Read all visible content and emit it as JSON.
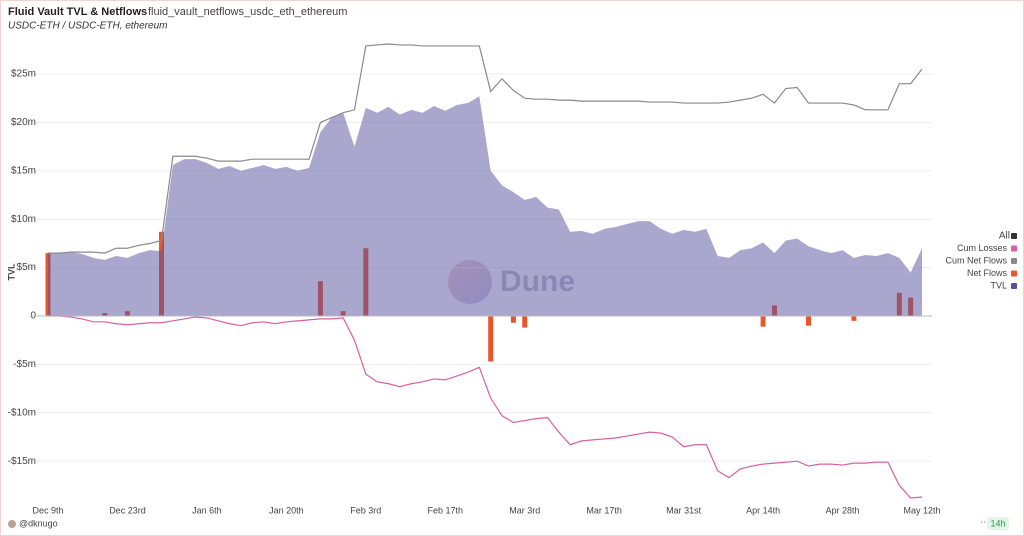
{
  "header": {
    "title": "Fluid Vault TVL & Netflows",
    "query": "fluid_vault_netflows_usdc_eth_ethereum",
    "subtitle": "USDC-ETH / USDC-ETH, ethereum"
  },
  "legend": {
    "all": "All"
  },
  "watermark": "Dune",
  "footer": {
    "author": "@dknugo",
    "age": "14h"
  },
  "chart_data": {
    "type": "combo",
    "y_label": "TVL",
    "categories": [
      "Dec 9th",
      null,
      null,
      null,
      null,
      null,
      null,
      "Dec 23rd",
      null,
      null,
      null,
      null,
      null,
      null,
      "Jan 6th",
      null,
      null,
      null,
      null,
      null,
      null,
      "Jan 20th",
      null,
      null,
      null,
      null,
      null,
      null,
      "Feb 3rd",
      null,
      null,
      null,
      null,
      null,
      null,
      "Feb 17th",
      null,
      null,
      null,
      null,
      null,
      null,
      "Mar 3rd",
      null,
      null,
      null,
      null,
      null,
      null,
      "Mar 17th",
      null,
      null,
      null,
      null,
      null,
      null,
      "Mar 31st",
      null,
      null,
      null,
      null,
      null,
      null,
      "Apr 14th",
      null,
      null,
      null,
      null,
      null,
      null,
      "Apr 28th",
      null,
      null,
      null,
      null,
      null,
      null,
      "May 12th"
    ],
    "ylim": [
      -20,
      30
    ],
    "yticks": [
      {
        "value": -15,
        "label": "-$15m"
      },
      {
        "value": -10,
        "label": "-$10m"
      },
      {
        "value": -5,
        "label": "-$5m"
      },
      0,
      {
        "value": 5,
        "label": "$5m"
      },
      {
        "value": 10,
        "label": "$10m"
      },
      {
        "value": 15,
        "label": "$15m"
      },
      {
        "value": 20,
        "label": "$20m"
      },
      {
        "value": 25,
        "label": "$25m"
      }
    ],
    "grid": true,
    "legend_position": "right",
    "series": [
      {
        "name": "Cum Losses",
        "type": "line",
        "color": "#d95fa3",
        "values": [
          0,
          0,
          -0.1,
          -0.3,
          -0.6,
          -0.6,
          -0.8,
          -0.9,
          -0.8,
          -0.7,
          -0.7,
          -0.5,
          -0.3,
          -0.1,
          -0.2,
          -0.5,
          -0.8,
          -1.0,
          -0.7,
          -0.6,
          -0.8,
          -0.6,
          -0.5,
          -0.4,
          -0.3,
          -0.3,
          -0.2,
          -2.5,
          -6.0,
          -6.8,
          -7.0,
          -7.3,
          -7.0,
          -6.8,
          -6.5,
          -6.6,
          -6.2,
          -5.8,
          -5.3,
          -8.5,
          -10.3,
          -11.0,
          -10.8,
          -10.6,
          -10.5,
          -12.0,
          -13.3,
          -12.9,
          -12.8,
          -12.7,
          -12.6,
          -12.4,
          -12.2,
          -12.0,
          -12.1,
          -12.5,
          -13.5,
          -13.3,
          -13.3,
          -16.0,
          -16.7,
          -15.8,
          -15.5,
          -15.3,
          -15.2,
          -15.1,
          -15.0,
          -15.5,
          -15.3,
          -15.3,
          -15.4,
          -15.2,
          -15.2,
          -15.1,
          -15.1,
          -17.5,
          -18.8,
          -18.7
        ]
      },
      {
        "name": "Cum Net Flows",
        "type": "line",
        "color": "#8a8a8a",
        "values": [
          6.5,
          6.5,
          6.6,
          6.6,
          6.6,
          6.5,
          7.0,
          7.0,
          7.3,
          7.5,
          7.8,
          16.5,
          16.5,
          16.5,
          16.3,
          16.0,
          16.0,
          16.0,
          16.2,
          16.2,
          16.2,
          16.2,
          16.2,
          16.2,
          20.0,
          20.5,
          21.0,
          21.3,
          27.9,
          28.0,
          28.1,
          28.0,
          28.0,
          27.9,
          27.9,
          27.9,
          27.9,
          27.9,
          27.9,
          23.2,
          24.5,
          23.3,
          22.5,
          22.4,
          22.4,
          22.3,
          22.3,
          22.2,
          22.2,
          22.2,
          22.2,
          22.2,
          22.2,
          22.1,
          22.1,
          22.1,
          22.0,
          22.0,
          22.0,
          22.0,
          22.1,
          22.3,
          22.5,
          22.9,
          22.0,
          23.5,
          23.6,
          22.0,
          22.0,
          22.0,
          22.0,
          21.8,
          21.3,
          21.3,
          21.3,
          24.0,
          24.0,
          25.5
        ]
      },
      {
        "name": "Net Flows",
        "type": "bar",
        "color": "#e8562a",
        "values": [
          6.5,
          0,
          0,
          0,
          0,
          0.3,
          0,
          0.5,
          0,
          0,
          8.7,
          0,
          0,
          0,
          0,
          0,
          0,
          0,
          0,
          0,
          0,
          0,
          0,
          0,
          3.6,
          0,
          0.5,
          0,
          7.0,
          0,
          0,
          0,
          0,
          0,
          0,
          0,
          0,
          0,
          0,
          -4.7,
          0,
          -0.7,
          -1.2,
          0,
          0,
          0,
          0,
          0,
          0,
          0,
          0,
          0,
          0,
          0,
          0,
          0,
          0,
          0,
          0,
          0,
          0,
          0,
          0,
          -1.1,
          1.1,
          0,
          0,
          -1.0,
          0,
          0,
          0,
          -0.5,
          0,
          0,
          0,
          2.4,
          1.9,
          0
        ]
      },
      {
        "name": "TVL",
        "type": "area",
        "color": "#55509f",
        "values": [
          6.5,
          6.5,
          6.6,
          6.4,
          6.0,
          5.8,
          6.2,
          6.0,
          6.5,
          6.8,
          6.7,
          15.6,
          16.2,
          16.2,
          15.8,
          15.2,
          15.5,
          15.0,
          15.3,
          15.6,
          15.2,
          15.4,
          15.0,
          15.3,
          19.0,
          20.5,
          21.0,
          17.5,
          21.5,
          21.0,
          21.6,
          20.8,
          21.3,
          21.0,
          21.7,
          21.2,
          21.8,
          22.0,
          22.7,
          15.0,
          13.5,
          12.8,
          12.0,
          12.3,
          11.2,
          11.0,
          8.7,
          8.8,
          8.5,
          9.0,
          9.2,
          9.5,
          9.8,
          9.8,
          9.0,
          8.5,
          8.9,
          8.7,
          9.0,
          6.2,
          6.0,
          6.8,
          7.0,
          7.6,
          6.5,
          7.8,
          8.0,
          7.2,
          6.8,
          6.5,
          6.8,
          6.0,
          6.3,
          6.2,
          6.5,
          6.0,
          4.5,
          7.0
        ]
      }
    ]
  }
}
